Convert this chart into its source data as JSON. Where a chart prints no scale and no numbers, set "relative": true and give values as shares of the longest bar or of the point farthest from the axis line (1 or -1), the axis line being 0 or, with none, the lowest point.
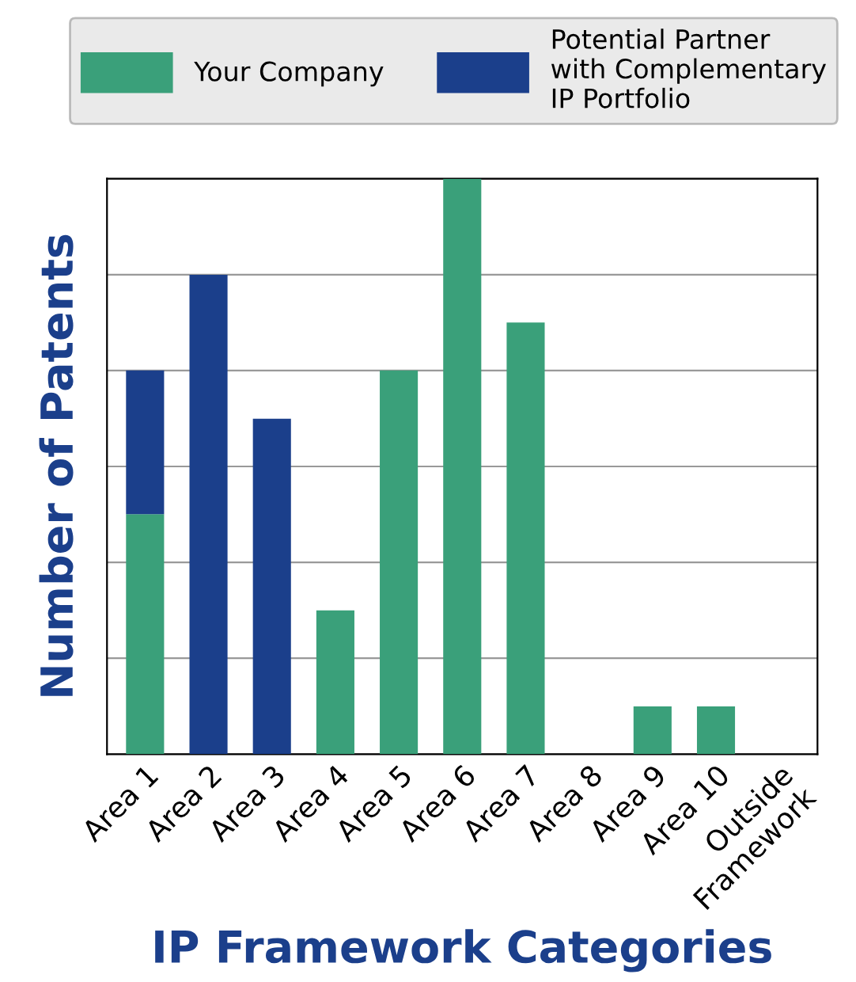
{
  "chart_data": {
    "type": "bar",
    "stacked": true,
    "relative": true,
    "xlabel": "IP Framework Categories",
    "ylabel": "Number of Patents",
    "categories": [
      "Area 1",
      "Area 2",
      "Area 3",
      "Area 4",
      "Area 5",
      "Area 6",
      "Area 7",
      "Area 8",
      "Area 9",
      "Area 10",
      "Outside\nFramework"
    ],
    "series": [
      {
        "name": "Your Company",
        "color": "#3aa07a",
        "values": [
          0.417,
          0,
          0,
          0.25,
          0.667,
          1,
          0.75,
          0,
          0.083,
          0.083,
          0
        ]
      },
      {
        "name": "Potential Partner\nwith Complementary\nIP Portfolio",
        "color": "#1b3f8b",
        "values": [
          0.25,
          0.833,
          0.583,
          0,
          0,
          0,
          0,
          0,
          0,
          0,
          0
        ]
      }
    ],
    "grid": "y",
    "legend": "top"
  }
}
